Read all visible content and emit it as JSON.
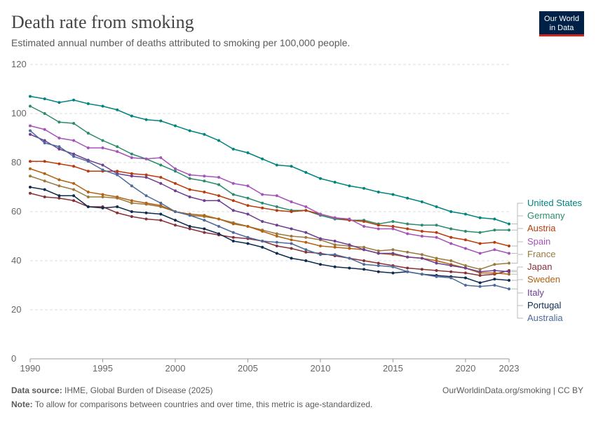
{
  "header": {
    "title": "Death rate from smoking",
    "subtitle": "Estimated annual number of deaths attributed to smoking per 100,000 people.",
    "logo": [
      "Our World",
      "in Data"
    ]
  },
  "chart_data": {
    "type": "line",
    "x": [
      1990,
      1991,
      1992,
      1993,
      1994,
      1995,
      1996,
      1997,
      1998,
      1999,
      2000,
      2001,
      2002,
      2003,
      2004,
      2005,
      2006,
      2007,
      2008,
      2009,
      2010,
      2011,
      2012,
      2013,
      2014,
      2015,
      2016,
      2017,
      2018,
      2019,
      2020,
      2021,
      2022,
      2023
    ],
    "xlim": [
      1990,
      2023
    ],
    "xticks": [
      1990,
      1995,
      2000,
      2005,
      2010,
      2015,
      2020,
      2023
    ],
    "ylim": [
      0,
      120
    ],
    "yticks": [
      0,
      20,
      40,
      60,
      80,
      100,
      120
    ],
    "grid": true,
    "series": [
      {
        "name": "United States",
        "color": "#00847e",
        "values": [
          107,
          106,
          104.5,
          105.5,
          104,
          103,
          101.5,
          99,
          97.5,
          97,
          95,
          93,
          91.5,
          89,
          85.5,
          84,
          81.5,
          79,
          78.5,
          76,
          73.5,
          72,
          70.5,
          69.5,
          68,
          67,
          65.5,
          64,
          62,
          60,
          59,
          57.5,
          57,
          55
        ]
      },
      {
        "name": "Germany",
        "color": "#2b8b6e",
        "values": [
          103,
          100,
          96.5,
          96,
          92,
          89,
          86.5,
          83.5,
          81.5,
          79,
          76.5,
          73.5,
          72.5,
          71,
          67,
          65.5,
          63.5,
          62,
          60.5,
          60.5,
          58.5,
          57,
          56.5,
          56.5,
          55,
          56,
          55,
          54.5,
          54.5,
          53,
          52,
          51.5,
          52.5,
          52.5
        ]
      },
      {
        "name": "Austria",
        "color": "#b93b0b",
        "values": [
          80.5,
          80.5,
          79.5,
          78.5,
          76.5,
          76.5,
          76.5,
          75.5,
          75,
          74,
          71.5,
          69,
          68,
          66.5,
          64.5,
          62.5,
          61.5,
          60.5,
          60,
          60.5,
          59,
          57.5,
          56.5,
          56,
          54.5,
          54,
          53,
          52,
          51.5,
          49.5,
          48.5,
          47,
          47.5,
          46
        ]
      },
      {
        "name": "Spain",
        "color": "#a652ba",
        "values": [
          95,
          93.5,
          90,
          89,
          86,
          86,
          84.5,
          82,
          81.5,
          82,
          77.5,
          75,
          74.5,
          74,
          71.5,
          70.5,
          67,
          66.5,
          64,
          62,
          59,
          57.5,
          57,
          54,
          53,
          53,
          51,
          50,
          49.5,
          47,
          45,
          43,
          44.5,
          43
        ]
      },
      {
        "name": "France",
        "color": "#9a7a3c",
        "values": [
          74.5,
          72.5,
          70.5,
          69,
          66,
          66,
          65.5,
          63.5,
          63,
          62,
          60,
          58.5,
          58,
          57,
          55.5,
          54,
          52.5,
          51,
          50,
          49.5,
          48.5,
          46.5,
          46,
          45.5,
          44,
          44.5,
          43.5,
          42.5,
          41,
          40,
          38,
          36.5,
          38.5,
          39
        ]
      },
      {
        "name": "Japan",
        "color": "#883039",
        "values": [
          67.5,
          66,
          65.5,
          64.5,
          62,
          62,
          59.5,
          58,
          57,
          56.5,
          54.5,
          53,
          51.5,
          50.5,
          49.5,
          49,
          48,
          46,
          45,
          43.5,
          43,
          42,
          41,
          40,
          39,
          38,
          37,
          36.5,
          36,
          35.5,
          35,
          34,
          34.5,
          36
        ]
      },
      {
        "name": "Sweden",
        "color": "#b16214",
        "values": [
          77.5,
          75.5,
          73,
          71.5,
          68,
          67,
          66,
          64.5,
          63.5,
          62.5,
          60,
          59,
          58.5,
          57,
          55,
          54,
          52,
          50,
          48.5,
          47.5,
          46,
          45.5,
          45,
          44.5,
          43,
          42.5,
          41.5,
          41,
          40,
          38.5,
          37,
          35,
          35,
          34.5
        ]
      },
      {
        "name": "Italy",
        "color": "#6d3e91",
        "values": [
          91.5,
          89,
          85.5,
          83.5,
          81,
          79,
          75.5,
          74.5,
          74,
          71.5,
          68.5,
          66,
          64.5,
          64.5,
          60.5,
          59,
          56,
          54.5,
          53,
          51.5,
          49,
          48,
          46.5,
          44.5,
          43,
          43,
          41.5,
          41,
          39,
          38,
          37,
          35.5,
          36,
          35.5
        ]
      },
      {
        "name": "Portugal",
        "color": "#0f2b50",
        "values": [
          70,
          69,
          66.5,
          66.5,
          62,
          61.5,
          62,
          60,
          59.5,
          59,
          56.5,
          54,
          53,
          51,
          48,
          47,
          45.5,
          43,
          41,
          40,
          38.5,
          37.5,
          37,
          36.5,
          35.5,
          35,
          35.5,
          34.5,
          34,
          33.5,
          33,
          31,
          32.5,
          32
        ]
      },
      {
        "name": "Australia",
        "color": "#4c6a9c",
        "values": [
          93,
          88,
          86.5,
          82.5,
          80.5,
          77,
          75,
          70.5,
          66.5,
          63.5,
          60,
          58.5,
          56.5,
          54,
          51.5,
          49.5,
          48,
          47.5,
          47,
          44.5,
          42.5,
          42.5,
          41,
          38.5,
          38,
          37.5,
          35.5,
          34.5,
          33.5,
          33,
          30,
          29.5,
          30,
          28.5
        ]
      }
    ]
  },
  "footer": {
    "source_label": "Data source:",
    "source": "IHME, Global Burden of Disease (2025)",
    "url": "OurWorldinData.org/smoking | CC BY",
    "note_label": "Note:",
    "note": "To allow for comparisons between countries and over time, this metric is age-standardized."
  }
}
